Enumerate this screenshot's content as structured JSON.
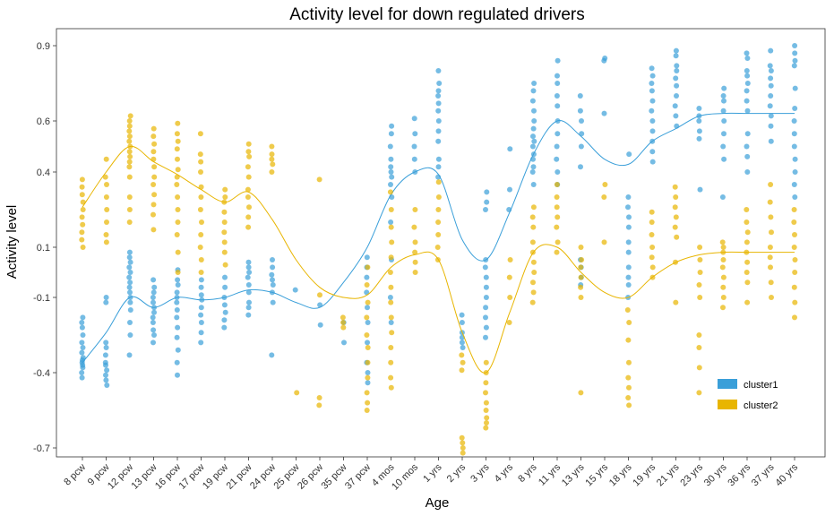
{
  "chart_data": {
    "type": "scatter",
    "title": "Activity level for down regulated drivers",
    "xlabel": "Age",
    "ylabel": "Activity level",
    "categories": [
      "8 pcw",
      "9 pcw",
      "12 pcw",
      "13 pcw",
      "16 pcw",
      "17 pcw",
      "19 pcw",
      "21 pcw",
      "24 pcw",
      "25 pcw",
      "26 pcw",
      "35 pcw",
      "37 pcw",
      "4 mos",
      "10 mos",
      "1 yrs",
      "2 yrs",
      "3 yrs",
      "4 yrs",
      "8 yrs",
      "11 yrs",
      "13 yrs",
      "15 yrs",
      "18 yrs",
      "19 yrs",
      "21 yrs",
      "23 yrs",
      "30 yrs",
      "36 yrs",
      "37 yrs",
      "40 yrs"
    ],
    "y_ticks": [
      {
        "label": "0.9",
        "value": 0.9
      },
      {
        "label": "0.6",
        "value": 0.6
      },
      {
        "label": "0.4",
        "value": 0.4
      },
      {
        "label": "0.1",
        "value": 0.1
      },
      {
        "label": "-0.1",
        "value": -0.1
      },
      {
        "label": "-0.4",
        "value": -0.4
      },
      {
        "label": "-0.7",
        "value": -0.7
      }
    ],
    "ylim": [
      -0.72,
      0.95
    ],
    "grid": false,
    "legend_position": "bottom-right",
    "series": [
      {
        "name": "cluster1",
        "color": "#3a9fd9",
        "trend": [
          -0.36,
          -0.24,
          -0.1,
          -0.14,
          -0.1,
          -0.11,
          -0.1,
          -0.07,
          -0.08,
          -0.12,
          -0.14,
          -0.04,
          0.1,
          0.31,
          0.4,
          0.39,
          0.13,
          0.05,
          0.24,
          0.47,
          0.6,
          0.54,
          0.45,
          0.43,
          0.52,
          0.57,
          0.62,
          0.63,
          0.63,
          0.63,
          0.63
        ],
        "points": [
          {
            "values": [
              -0.18,
              -0.2,
              -0.22,
              -0.25,
              -0.28,
              -0.3,
              -0.32,
              -0.34,
              -0.36,
              -0.38,
              -0.4,
              -0.42,
              -0.37,
              -0.35
            ]
          },
          {
            "values": [
              -0.1,
              -0.12,
              -0.28,
              -0.3,
              -0.33,
              -0.36,
              -0.39,
              -0.41,
              -0.43,
              -0.45,
              -0.37
            ]
          },
          {
            "values": [
              0.08,
              0.06,
              0.04,
              0.02,
              0.0,
              -0.02,
              -0.04,
              -0.06,
              -0.08,
              -0.1,
              -0.12,
              -0.15,
              -0.2,
              -0.25,
              -0.33
            ]
          },
          {
            "values": [
              -0.03,
              -0.06,
              -0.08,
              -0.1,
              -0.12,
              -0.14,
              -0.16,
              -0.18,
              -0.2,
              -0.23,
              -0.25,
              -0.28
            ]
          },
          {
            "values": [
              0.01,
              -0.03,
              -0.05,
              -0.08,
              -0.1,
              -0.12,
              -0.15,
              -0.18,
              -0.22,
              -0.26,
              -0.31,
              -0.36,
              -0.41
            ]
          },
          {
            "values": [
              -0.03,
              -0.06,
              -0.09,
              -0.11,
              -0.14,
              -0.17,
              -0.2,
              -0.24,
              -0.28
            ]
          },
          {
            "values": [
              -0.02,
              -0.06,
              -0.1,
              -0.13,
              -0.16,
              -0.19,
              -0.22
            ]
          },
          {
            "values": [
              0.04,
              0.02,
              0.0,
              -0.02,
              -0.05,
              -0.08,
              -0.12,
              -0.14,
              -0.17
            ]
          },
          {
            "values": [
              0.05,
              0.02,
              -0.01,
              -0.03,
              -0.05,
              -0.08,
              -0.12,
              -0.33
            ]
          },
          {
            "values": [
              -0.07
            ]
          },
          {
            "values": [
              -0.13,
              -0.21
            ]
          },
          {
            "values": [
              -0.2,
              -0.28
            ]
          },
          {
            "values": [
              0.06,
              0.02,
              -0.02,
              -0.08,
              -0.14,
              -0.2,
              -0.28,
              -0.36,
              -0.4,
              -0.44
            ]
          },
          {
            "values": [
              0.58,
              0.55,
              0.5,
              0.45,
              0.42,
              0.4,
              0.38,
              0.35,
              0.3,
              0.2,
              0.05,
              -0.1,
              -0.2
            ]
          },
          {
            "values": [
              0.61,
              0.55,
              0.5,
              0.45,
              0.4
            ]
          },
          {
            "values": [
              0.8,
              0.75,
              0.72,
              0.7,
              0.67,
              0.64,
              0.6,
              0.56,
              0.52,
              0.45,
              0.42,
              0.38
            ]
          },
          {
            "values": [
              -0.17,
              -0.2,
              -0.24,
              -0.26,
              -0.28,
              -0.3
            ]
          },
          {
            "values": [
              0.32,
              0.28,
              0.25,
              0.05,
              0.02,
              -0.02,
              -0.06,
              -0.1,
              -0.14,
              -0.18,
              -0.22,
              -0.26
            ]
          },
          {
            "values": [
              0.49,
              0.33,
              0.25
            ]
          },
          {
            "values": [
              0.75,
              0.72,
              0.68,
              0.64,
              0.6,
              0.57,
              0.54,
              0.52,
              0.5,
              0.47,
              0.45,
              0.42,
              0.4,
              0.35
            ]
          },
          {
            "values": [
              0.84,
              0.78,
              0.75,
              0.7,
              0.66,
              0.6,
              0.55,
              0.5,
              0.45,
              0.4,
              0.35
            ]
          },
          {
            "values": [
              0.7,
              0.64,
              0.6,
              0.55,
              0.5,
              0.42,
              0.05,
              0.02,
              -0.02,
              -0.05
            ]
          },
          {
            "values": [
              0.85,
              0.84,
              0.63
            ]
          },
          {
            "values": [
              0.47,
              0.3,
              0.26,
              0.22,
              0.18,
              0.12,
              0.08,
              0.02,
              -0.02,
              -0.05,
              -0.1
            ]
          },
          {
            "values": [
              0.81,
              0.78,
              0.75,
              0.72,
              0.68,
              0.64,
              0.6,
              0.56,
              0.52,
              0.48,
              0.44
            ]
          },
          {
            "values": [
              0.88,
              0.86,
              0.82,
              0.8,
              0.77,
              0.74,
              0.7,
              0.66,
              0.62,
              0.58
            ]
          },
          {
            "values": [
              0.65,
              0.62,
              0.6,
              0.56,
              0.53,
              0.33
            ]
          },
          {
            "values": [
              0.73,
              0.7,
              0.68,
              0.64,
              0.6,
              0.55,
              0.5,
              0.45,
              0.3
            ]
          },
          {
            "values": [
              0.87,
              0.85,
              0.8,
              0.78,
              0.75,
              0.72,
              0.68,
              0.64,
              0.55,
              0.5,
              0.46,
              0.4
            ]
          },
          {
            "values": [
              0.88,
              0.82,
              0.8,
              0.77,
              0.74,
              0.7,
              0.66,
              0.62,
              0.58,
              0.52
            ]
          },
          {
            "values": [
              0.9,
              0.87,
              0.84,
              0.82,
              0.73,
              0.65,
              0.6,
              0.55,
              0.5,
              0.45,
              0.4,
              0.35,
              0.3
            ]
          }
        ]
      },
      {
        "name": "cluster2",
        "color": "#e8b500",
        "trend": [
          0.26,
          0.4,
          0.5,
          0.44,
          0.39,
          0.33,
          0.28,
          0.32,
          0.21,
          0.05,
          -0.06,
          -0.1,
          -0.09,
          0.02,
          0.07,
          0.05,
          -0.24,
          -0.4,
          -0.16,
          0.08,
          0.1,
          0.0,
          -0.08,
          -0.1,
          -0.02,
          0.04,
          0.07,
          0.08,
          0.08,
          0.08,
          0.08
        ],
        "points": [
          {
            "values": [
              0.37,
              0.34,
              0.31,
              0.28,
              0.25,
              0.22,
              0.19,
              0.16,
              0.13,
              0.1
            ]
          },
          {
            "values": [
              0.45,
              0.38,
              0.35,
              0.3,
              0.25,
              0.2,
              0.15,
              0.12
            ]
          },
          {
            "values": [
              0.62,
              0.6,
              0.58,
              0.56,
              0.54,
              0.52,
              0.5,
              0.48,
              0.46,
              0.44,
              0.42,
              0.38,
              0.3,
              0.25,
              0.2
            ]
          },
          {
            "values": [
              0.57,
              0.54,
              0.51,
              0.48,
              0.45,
              0.42,
              0.38,
              0.35,
              0.31,
              0.27,
              0.23,
              0.17
            ]
          },
          {
            "values": [
              0.59,
              0.55,
              0.52,
              0.49,
              0.45,
              0.41,
              0.38,
              0.35,
              0.3,
              0.25,
              0.2,
              0.15,
              0.08,
              0.0
            ]
          },
          {
            "values": [
              0.55,
              0.47,
              0.44,
              0.4,
              0.34,
              0.3,
              0.25,
              0.2,
              0.15,
              0.1,
              0.05,
              0.0
            ]
          },
          {
            "values": [
              0.33,
              0.3,
              0.28,
              0.24,
              0.2,
              0.16,
              0.12,
              0.08,
              0.03
            ]
          },
          {
            "values": [
              0.51,
              0.48,
              0.46,
              0.42,
              0.38,
              0.33,
              0.3,
              0.26,
              0.22,
              0.18
            ]
          },
          {
            "values": [
              0.5,
              0.47,
              0.45,
              0.43,
              0.4
            ]
          },
          {
            "values": [
              -0.48
            ]
          },
          {
            "values": [
              0.37,
              -0.09,
              -0.5,
              -0.53
            ]
          },
          {
            "values": [
              -0.18,
              -0.2,
              -0.22
            ]
          },
          {
            "values": [
              0.02,
              -0.05,
              -0.12,
              -0.18,
              -0.25,
              -0.3,
              -0.36,
              -0.42,
              -0.48,
              -0.52,
              -0.55
            ]
          },
          {
            "values": [
              0.32,
              0.25,
              0.18,
              0.12,
              0.06,
              0.0,
              -0.06,
              -0.12,
              -0.18,
              -0.24,
              -0.3,
              -0.36,
              -0.42,
              -0.46
            ]
          },
          {
            "values": [
              0.25,
              0.18,
              0.12,
              0.08,
              0.04,
              0.0
            ]
          },
          {
            "values": [
              0.36,
              0.3,
              0.25,
              0.2,
              0.15,
              0.1,
              0.05
            ]
          },
          {
            "values": [
              -0.33,
              -0.36,
              -0.39,
              -0.66,
              -0.68,
              -0.7,
              -0.72
            ]
          },
          {
            "values": [
              -0.36,
              -0.4,
              -0.44,
              -0.48,
              -0.52,
              -0.55,
              -0.58,
              -0.6,
              -0.62
            ]
          },
          {
            "values": [
              0.05,
              -0.02,
              -0.1,
              -0.2
            ]
          },
          {
            "values": [
              0.26,
              0.22,
              0.18,
              0.12,
              0.08,
              0.04,
              0.0,
              -0.04,
              -0.08,
              -0.12
            ]
          },
          {
            "values": [
              0.35,
              0.3,
              0.26,
              0.22,
              0.18,
              0.12,
              0.08
            ]
          },
          {
            "values": [
              0.1,
              0.05,
              0.02,
              -0.02,
              -0.06,
              -0.1,
              -0.48
            ]
          },
          {
            "values": [
              0.35,
              0.3,
              0.12
            ]
          },
          {
            "values": [
              -0.15,
              -0.2,
              -0.27,
              -0.36,
              -0.42,
              -0.46,
              -0.5,
              -0.53
            ]
          },
          {
            "values": [
              0.24,
              0.2,
              0.15,
              0.1,
              0.06,
              0.02,
              -0.02
            ]
          },
          {
            "values": [
              0.34,
              0.3,
              0.26,
              0.22,
              0.18,
              0.14,
              0.04,
              -0.12
            ]
          },
          {
            "values": [
              0.1,
              0.05,
              0.0,
              -0.05,
              -0.1,
              -0.25,
              -0.3,
              -0.38,
              -0.48
            ]
          },
          {
            "values": [
              0.12,
              0.1,
              0.08,
              0.05,
              0.02,
              -0.02,
              -0.06,
              -0.1,
              -0.14
            ]
          },
          {
            "values": [
              0.25,
              0.2,
              0.16,
              0.12,
              0.08,
              0.04,
              0.0,
              -0.04,
              -0.12
            ]
          },
          {
            "values": [
              0.35,
              0.28,
              0.22,
              0.16,
              0.1,
              0.06,
              0.02,
              -0.04,
              -0.1
            ]
          },
          {
            "values": [
              0.25,
              0.2,
              0.15,
              0.1,
              0.05,
              0.0,
              -0.06,
              -0.12,
              -0.18
            ]
          }
        ]
      }
    ]
  }
}
